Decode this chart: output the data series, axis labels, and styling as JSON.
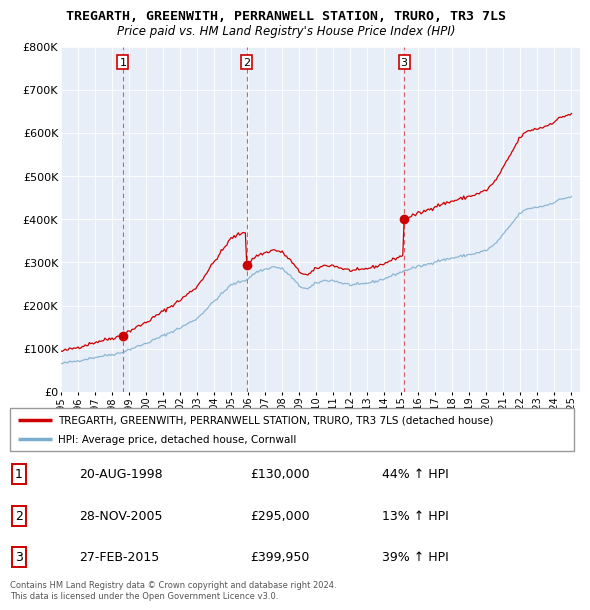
{
  "title": "TREGARTH, GREENWITH, PERRANWELL STATION, TRURO, TR3 7LS",
  "subtitle": "Price paid vs. HM Land Registry's House Price Index (HPI)",
  "ylim": [
    0,
    800000
  ],
  "yticks": [
    0,
    100000,
    200000,
    300000,
    400000,
    500000,
    600000,
    700000,
    800000
  ],
  "ytick_labels": [
    "£0",
    "£100K",
    "£200K",
    "£300K",
    "£400K",
    "£500K",
    "£600K",
    "£700K",
    "£800K"
  ],
  "red_line_color": "#cc0000",
  "blue_line_color": "#7aadce",
  "chart_bg_color": "#e8eef8",
  "marker_color": "#cc0000",
  "dashed_line_color": "#cc0000",
  "grid_color": "#ffffff",
  "background_color": "#ffffff",
  "legend_line1": "TREGARTH, GREENWITH, PERRANWELL STATION, TRURO, TR3 7LS (detached house)",
  "legend_line2": "HPI: Average price, detached house, Cornwall",
  "sale1_label": "1",
  "sale1_date": "20-AUG-1998",
  "sale1_price": "£130,000",
  "sale1_hpi": "44% ↑ HPI",
  "sale1_year": 1998.64,
  "sale1_value": 130000,
  "sale2_label": "2",
  "sale2_date": "28-NOV-2005",
  "sale2_price": "£295,000",
  "sale2_hpi": "13% ↑ HPI",
  "sale2_year": 2005.91,
  "sale2_value": 295000,
  "sale3_label": "3",
  "sale3_date": "27-FEB-2015",
  "sale3_price": "£399,950",
  "sale3_hpi": "39% ↑ HPI",
  "sale3_year": 2015.16,
  "sale3_value": 399950,
  "footer": "Contains HM Land Registry data © Crown copyright and database right 2024.\nThis data is licensed under the Open Government Licence v3.0.",
  "xmin": 1995.0,
  "xmax": 2025.5
}
